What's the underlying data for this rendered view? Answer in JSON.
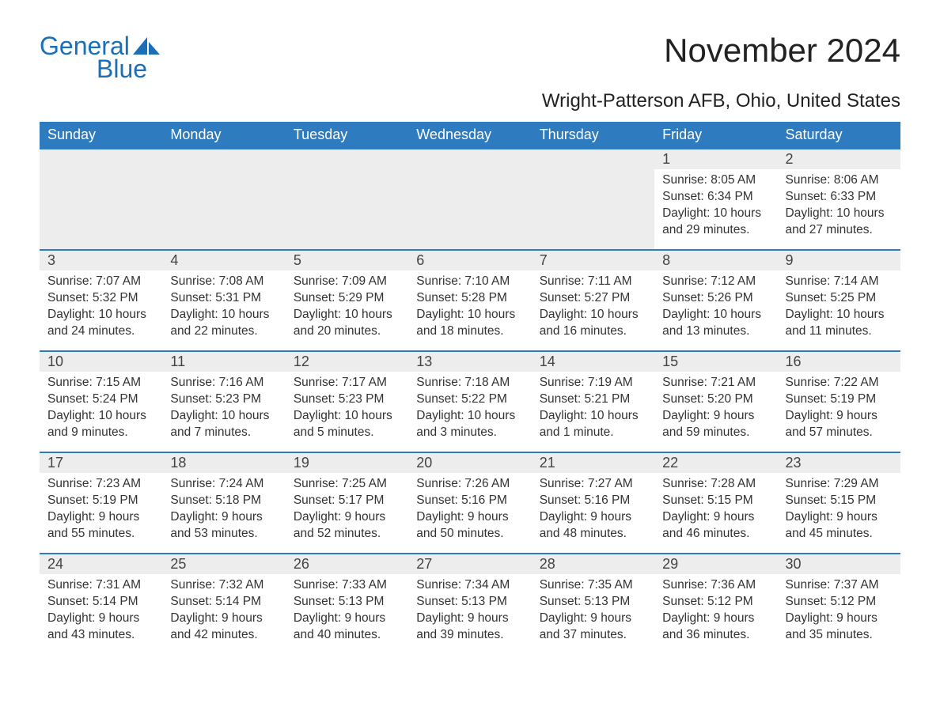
{
  "brand": {
    "text_general": "General",
    "text_blue": "Blue",
    "logo_color": "#1a6fb8",
    "sail_color": "#1a6fb8"
  },
  "header": {
    "title": "November 2024",
    "location": "Wright-Patterson AFB, Ohio, United States",
    "title_fontsize": 42,
    "subtitle_fontsize": 24,
    "title_color": "#222222"
  },
  "calendar": {
    "type": "table",
    "header_bg": "#2e7bbf",
    "header_text_color": "#ffffff",
    "day_rule_color": "#2e7bbf",
    "daynum_bg": "#ededed",
    "body_text_color": "#333333",
    "columns": [
      "Sunday",
      "Monday",
      "Tuesday",
      "Wednesday",
      "Thursday",
      "Friday",
      "Saturday"
    ],
    "weeks": [
      [
        null,
        null,
        null,
        null,
        null,
        {
          "d": "1",
          "sunrise": "8:05 AM",
          "sunset": "6:34 PM",
          "daylight": "10 hours and 29 minutes."
        },
        {
          "d": "2",
          "sunrise": "8:06 AM",
          "sunset": "6:33 PM",
          "daylight": "10 hours and 27 minutes."
        }
      ],
      [
        {
          "d": "3",
          "sunrise": "7:07 AM",
          "sunset": "5:32 PM",
          "daylight": "10 hours and 24 minutes."
        },
        {
          "d": "4",
          "sunrise": "7:08 AM",
          "sunset": "5:31 PM",
          "daylight": "10 hours and 22 minutes."
        },
        {
          "d": "5",
          "sunrise": "7:09 AM",
          "sunset": "5:29 PM",
          "daylight": "10 hours and 20 minutes."
        },
        {
          "d": "6",
          "sunrise": "7:10 AM",
          "sunset": "5:28 PM",
          "daylight": "10 hours and 18 minutes."
        },
        {
          "d": "7",
          "sunrise": "7:11 AM",
          "sunset": "5:27 PM",
          "daylight": "10 hours and 16 minutes."
        },
        {
          "d": "8",
          "sunrise": "7:12 AM",
          "sunset": "5:26 PM",
          "daylight": "10 hours and 13 minutes."
        },
        {
          "d": "9",
          "sunrise": "7:14 AM",
          "sunset": "5:25 PM",
          "daylight": "10 hours and 11 minutes."
        }
      ],
      [
        {
          "d": "10",
          "sunrise": "7:15 AM",
          "sunset": "5:24 PM",
          "daylight": "10 hours and 9 minutes."
        },
        {
          "d": "11",
          "sunrise": "7:16 AM",
          "sunset": "5:23 PM",
          "daylight": "10 hours and 7 minutes."
        },
        {
          "d": "12",
          "sunrise": "7:17 AM",
          "sunset": "5:23 PM",
          "daylight": "10 hours and 5 minutes."
        },
        {
          "d": "13",
          "sunrise": "7:18 AM",
          "sunset": "5:22 PM",
          "daylight": "10 hours and 3 minutes."
        },
        {
          "d": "14",
          "sunrise": "7:19 AM",
          "sunset": "5:21 PM",
          "daylight": "10 hours and 1 minute."
        },
        {
          "d": "15",
          "sunrise": "7:21 AM",
          "sunset": "5:20 PM",
          "daylight": "9 hours and 59 minutes."
        },
        {
          "d": "16",
          "sunrise": "7:22 AM",
          "sunset": "5:19 PM",
          "daylight": "9 hours and 57 minutes."
        }
      ],
      [
        {
          "d": "17",
          "sunrise": "7:23 AM",
          "sunset": "5:19 PM",
          "daylight": "9 hours and 55 minutes."
        },
        {
          "d": "18",
          "sunrise": "7:24 AM",
          "sunset": "5:18 PM",
          "daylight": "9 hours and 53 minutes."
        },
        {
          "d": "19",
          "sunrise": "7:25 AM",
          "sunset": "5:17 PM",
          "daylight": "9 hours and 52 minutes."
        },
        {
          "d": "20",
          "sunrise": "7:26 AM",
          "sunset": "5:16 PM",
          "daylight": "9 hours and 50 minutes."
        },
        {
          "d": "21",
          "sunrise": "7:27 AM",
          "sunset": "5:16 PM",
          "daylight": "9 hours and 48 minutes."
        },
        {
          "d": "22",
          "sunrise": "7:28 AM",
          "sunset": "5:15 PM",
          "daylight": "9 hours and 46 minutes."
        },
        {
          "d": "23",
          "sunrise": "7:29 AM",
          "sunset": "5:15 PM",
          "daylight": "9 hours and 45 minutes."
        }
      ],
      [
        {
          "d": "24",
          "sunrise": "7:31 AM",
          "sunset": "5:14 PM",
          "daylight": "9 hours and 43 minutes."
        },
        {
          "d": "25",
          "sunrise": "7:32 AM",
          "sunset": "5:14 PM",
          "daylight": "9 hours and 42 minutes."
        },
        {
          "d": "26",
          "sunrise": "7:33 AM",
          "sunset": "5:13 PM",
          "daylight": "9 hours and 40 minutes."
        },
        {
          "d": "27",
          "sunrise": "7:34 AM",
          "sunset": "5:13 PM",
          "daylight": "9 hours and 39 minutes."
        },
        {
          "d": "28",
          "sunrise": "7:35 AM",
          "sunset": "5:13 PM",
          "daylight": "9 hours and 37 minutes."
        },
        {
          "d": "29",
          "sunrise": "7:36 AM",
          "sunset": "5:12 PM",
          "daylight": "9 hours and 36 minutes."
        },
        {
          "d": "30",
          "sunrise": "7:37 AM",
          "sunset": "5:12 PM",
          "daylight": "9 hours and 35 minutes."
        }
      ]
    ],
    "labels": {
      "sunrise_prefix": "Sunrise: ",
      "sunset_prefix": "Sunset: ",
      "daylight_prefix": "Daylight: "
    }
  }
}
